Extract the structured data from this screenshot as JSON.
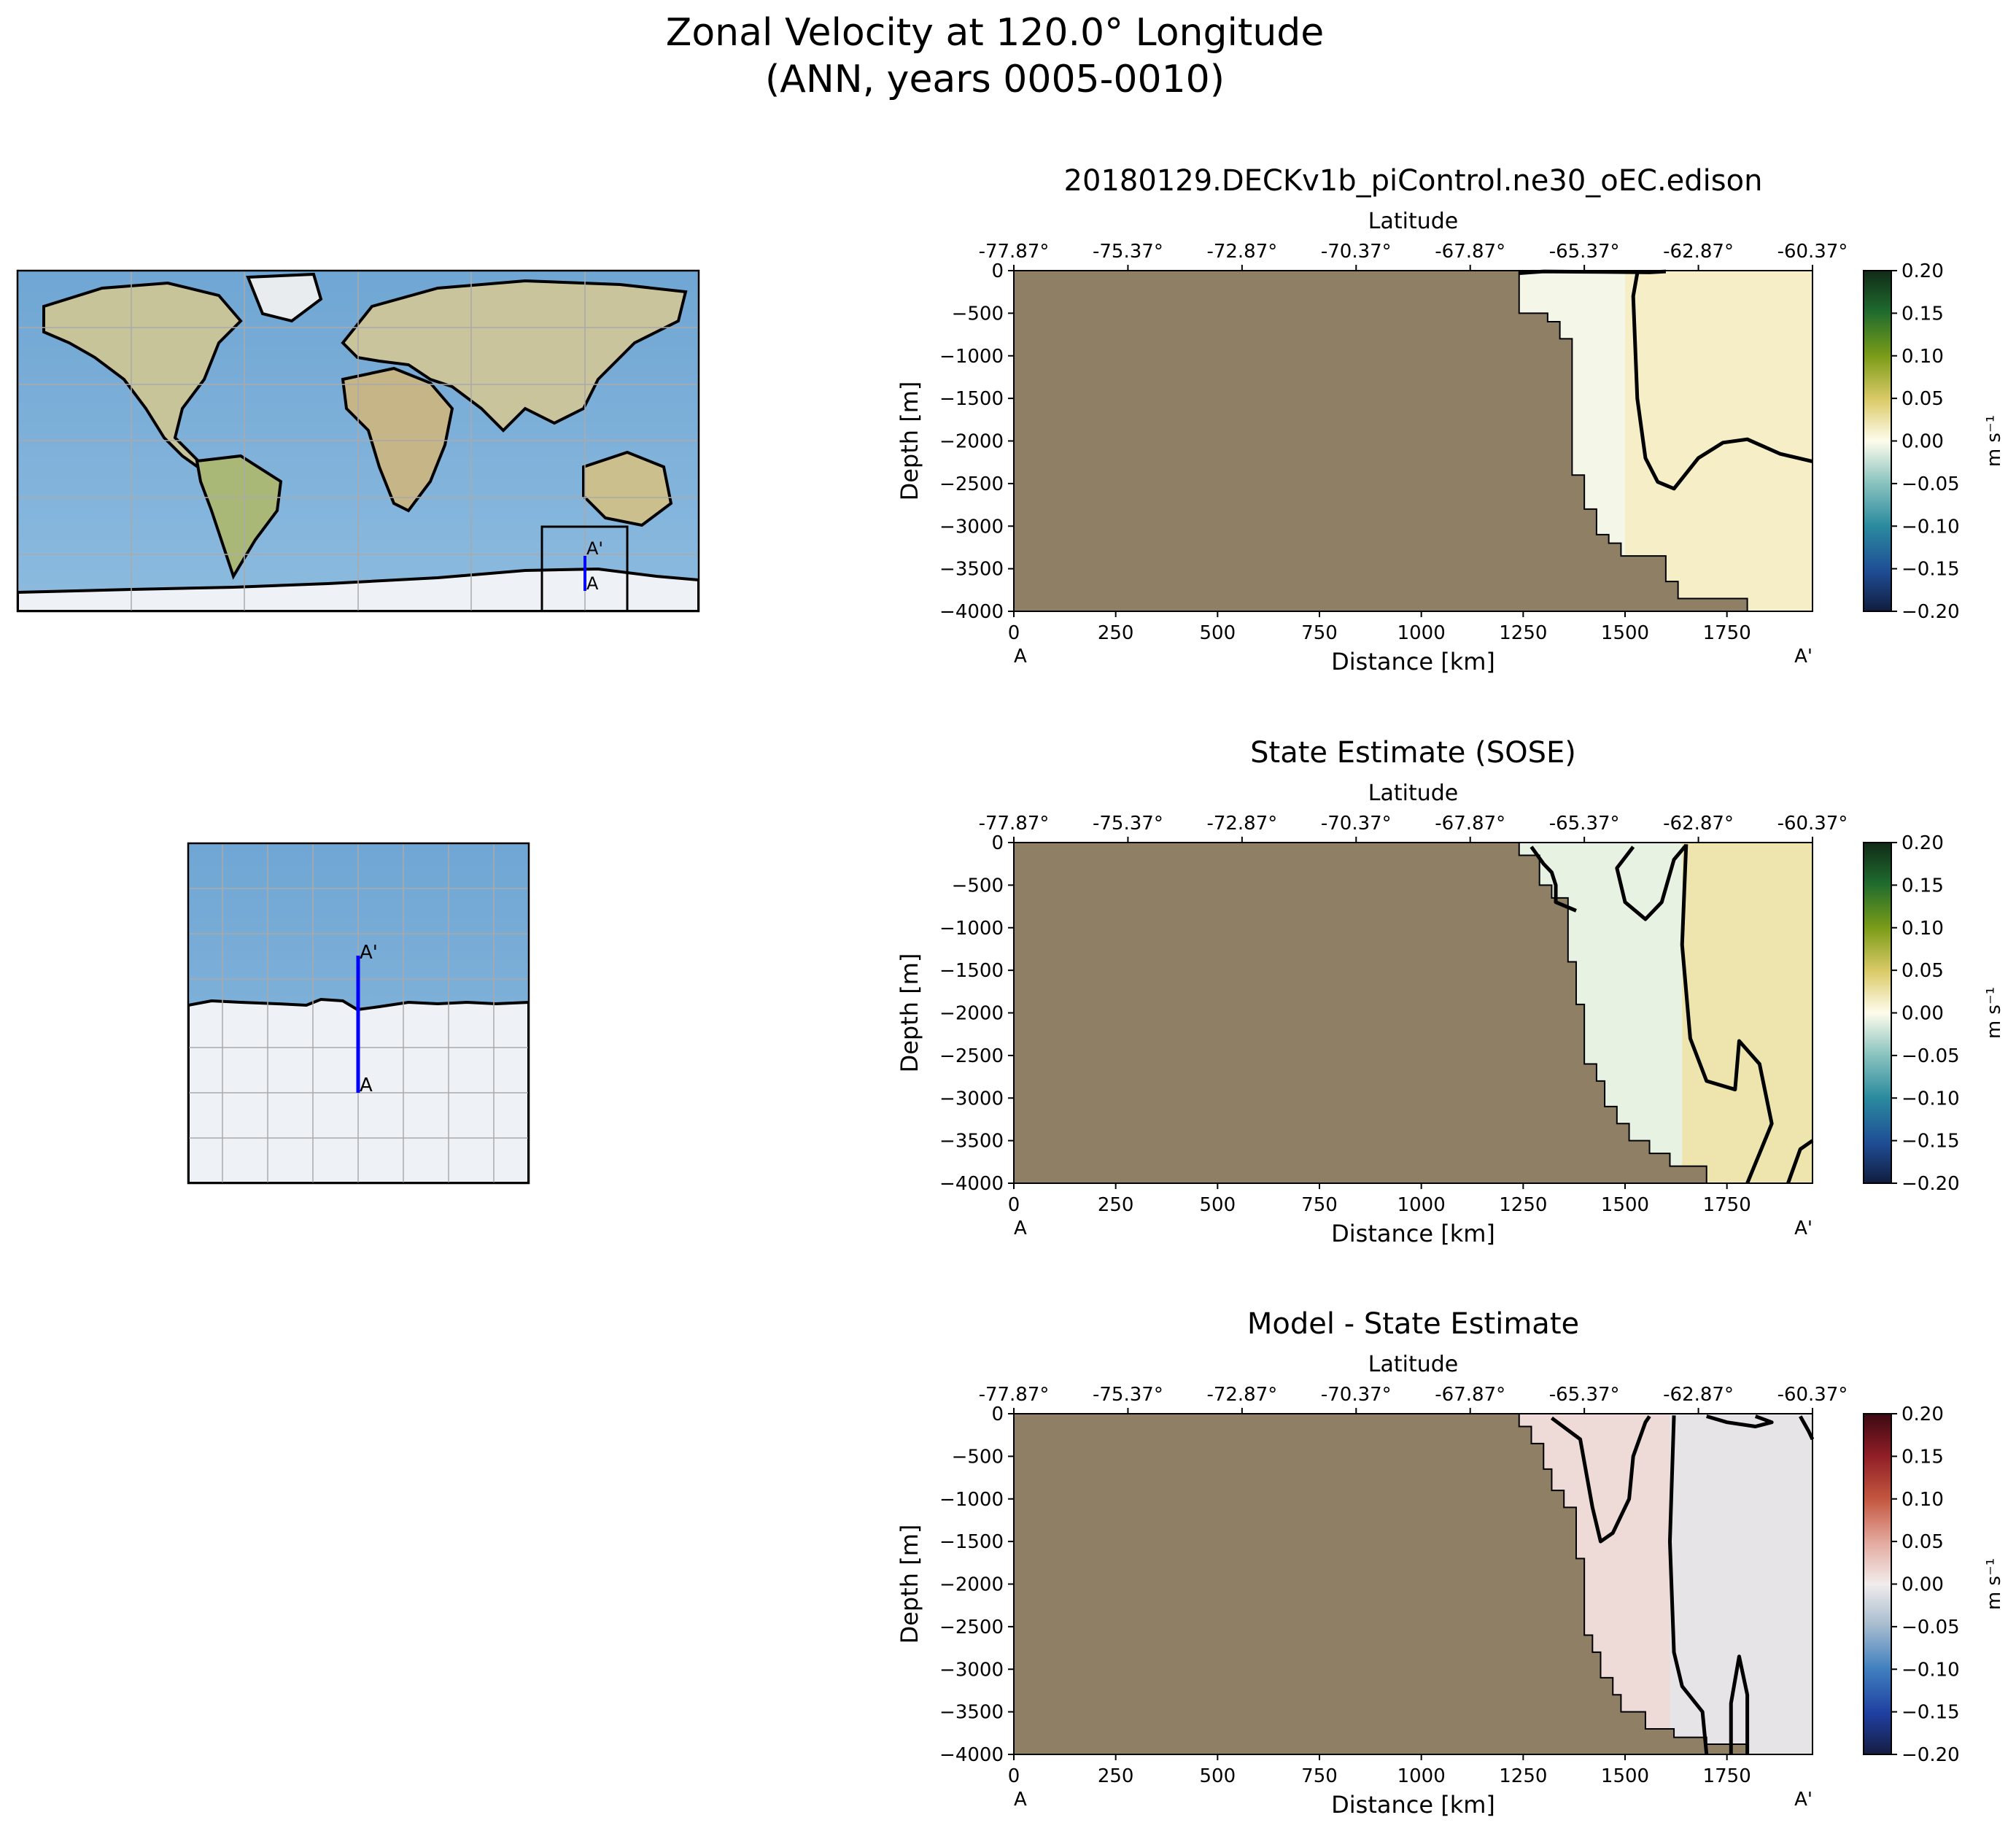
{
  "figure": {
    "title_line1": "Zonal Velocity at 120.0° Longitude",
    "title_line2": "(ANN, years 0005-0010)"
  },
  "maps": {
    "marker_start": "A",
    "marker_end": "A'",
    "colors": {
      "ocean": "#7cb0d6",
      "land": "#c8c8a0",
      "ice": "#eef2f8",
      "section_line": "#0000ff",
      "grid": "#aaaaaa"
    }
  },
  "chart_data": [
    {
      "type": "heatmap",
      "title": "20180129.DECKv1b_piControl.ne30_oEC.edison",
      "xlabel": "Distance [km]",
      "ylabel": "Depth [m]",
      "top_xlabel": "Latitude",
      "xlim": [
        0,
        1960
      ],
      "ylim": [
        -4000,
        0
      ],
      "xticks": [
        0,
        250,
        500,
        750,
        1000,
        1250,
        1500,
        1750
      ],
      "yticks": [
        0,
        -500,
        -1000,
        -1500,
        -2000,
        -2500,
        -3000,
        -3500,
        -4000
      ],
      "top_ticks": [
        {
          "x": 0,
          "label": "-77.87°"
        },
        {
          "x": 280,
          "label": "-75.37°"
        },
        {
          "x": 560,
          "label": "-72.87°"
        },
        {
          "x": 840,
          "label": "-70.37°"
        },
        {
          "x": 1120,
          "label": "-67.87°"
        },
        {
          "x": 1400,
          "label": "-65.37°"
        },
        {
          "x": 1680,
          "label": "-62.87°"
        },
        {
          "x": 1960,
          "label": "-60.37°"
        }
      ],
      "endpoint_labels": [
        "A",
        "A'"
      ],
      "colorbar": {
        "label": "m s⁻¹",
        "ticks": [
          "0.20",
          "0.15",
          "0.10",
          "0.05",
          "0.00",
          "-0.05",
          "-0.10",
          "-0.15",
          "-0.20"
        ],
        "range": [
          -0.2,
          0.2
        ],
        "colormap": "delta"
      },
      "bathymetry": [
        [
          1240,
          0
        ],
        [
          1240,
          -500
        ],
        [
          1310,
          -500
        ],
        [
          1310,
          -600
        ],
        [
          1340,
          -600
        ],
        [
          1340,
          -800
        ],
        [
          1370,
          -800
        ],
        [
          1370,
          -2400
        ],
        [
          1400,
          -2400
        ],
        [
          1400,
          -2800
        ],
        [
          1430,
          -2800
        ],
        [
          1430,
          -3100
        ],
        [
          1460,
          -3100
        ],
        [
          1460,
          -3200
        ],
        [
          1490,
          -3200
        ],
        [
          1490,
          -3350
        ],
        [
          1600,
          -3350
        ],
        [
          1600,
          -3650
        ],
        [
          1630,
          -3650
        ],
        [
          1630,
          -3850
        ],
        [
          1800,
          -3850
        ],
        [
          1800,
          -4000
        ]
      ],
      "contours": [
        [
          [
            1240,
            -30
          ],
          [
            1300,
            -10
          ],
          [
            1450,
            -15
          ],
          [
            1560,
            -20
          ],
          [
            1600,
            -10
          ]
        ],
        [
          [
            1530,
            -30
          ],
          [
            1520,
            -300
          ],
          [
            1530,
            -1500
          ],
          [
            1550,
            -2200
          ],
          [
            1580,
            -2480
          ],
          [
            1620,
            -2560
          ],
          [
            1680,
            -2200
          ],
          [
            1740,
            -2020
          ],
          [
            1800,
            -1980
          ],
          [
            1880,
            -2150
          ],
          [
            1960,
            -2240
          ]
        ]
      ],
      "field_bands": [
        {
          "x0": 1240,
          "x1": 1500,
          "value": -0.005
        },
        {
          "x0": 1500,
          "x1": 1960,
          "value": 0.015
        }
      ]
    },
    {
      "type": "heatmap",
      "title": "State Estimate (SOSE)",
      "xlabel": "Distance [km]",
      "ylabel": "Depth [m]",
      "top_xlabel": "Latitude",
      "xlim": [
        0,
        1960
      ],
      "ylim": [
        -4000,
        0
      ],
      "xticks": [
        0,
        250,
        500,
        750,
        1000,
        1250,
        1500,
        1750
      ],
      "yticks": [
        0,
        -500,
        -1000,
        -1500,
        -2000,
        -2500,
        -3000,
        -3500,
        -4000
      ],
      "top_ticks": [
        {
          "x": 0,
          "label": "-77.87°"
        },
        {
          "x": 280,
          "label": "-75.37°"
        },
        {
          "x": 560,
          "label": "-72.87°"
        },
        {
          "x": 840,
          "label": "-70.37°"
        },
        {
          "x": 1120,
          "label": "-67.87°"
        },
        {
          "x": 1400,
          "label": "-65.37°"
        },
        {
          "x": 1680,
          "label": "-62.87°"
        },
        {
          "x": 1960,
          "label": "-60.37°"
        }
      ],
      "endpoint_labels": [
        "A",
        "A'"
      ],
      "colorbar": {
        "label": "m s⁻¹",
        "ticks": [
          "0.20",
          "0.15",
          "0.10",
          "0.05",
          "0.00",
          "-0.05",
          "-0.10",
          "-0.15",
          "-0.20"
        ],
        "range": [
          -0.2,
          0.2
        ],
        "colormap": "delta"
      },
      "bathymetry": [
        [
          1240,
          0
        ],
        [
          1240,
          -150
        ],
        [
          1290,
          -150
        ],
        [
          1290,
          -500
        ],
        [
          1320,
          -500
        ],
        [
          1320,
          -650
        ],
        [
          1360,
          -650
        ],
        [
          1360,
          -1400
        ],
        [
          1380,
          -1400
        ],
        [
          1380,
          -1900
        ],
        [
          1400,
          -1900
        ],
        [
          1400,
          -2600
        ],
        [
          1430,
          -2600
        ],
        [
          1430,
          -2800
        ],
        [
          1450,
          -2800
        ],
        [
          1450,
          -3100
        ],
        [
          1480,
          -3100
        ],
        [
          1480,
          -3300
        ],
        [
          1510,
          -3300
        ],
        [
          1510,
          -3500
        ],
        [
          1560,
          -3500
        ],
        [
          1560,
          -3650
        ],
        [
          1610,
          -3650
        ],
        [
          1610,
          -3800
        ],
        [
          1700,
          -3800
        ],
        [
          1700,
          -4000
        ]
      ],
      "contours": [
        [
          [
            1270,
            -50
          ],
          [
            1300,
            -250
          ],
          [
            1320,
            -350
          ],
          [
            1330,
            -500
          ],
          [
            1330,
            -700
          ],
          [
            1380,
            -800
          ]
        ],
        [
          [
            1520,
            -50
          ],
          [
            1480,
            -300
          ],
          [
            1500,
            -700
          ],
          [
            1550,
            -900
          ],
          [
            1590,
            -700
          ],
          [
            1620,
            -200
          ],
          [
            1650,
            -30
          ]
        ],
        [
          [
            1650,
            -20
          ],
          [
            1640,
            -1200
          ],
          [
            1660,
            -2300
          ],
          [
            1700,
            -2800
          ],
          [
            1770,
            -2900
          ],
          [
            1780,
            -2330
          ],
          [
            1830,
            -2600
          ],
          [
            1860,
            -3300
          ],
          [
            1800,
            -4000
          ]
        ],
        [
          [
            1960,
            -3500
          ],
          [
            1930,
            -3600
          ],
          [
            1900,
            -4000
          ]
        ]
      ],
      "field_bands": [
        {
          "x0": 1240,
          "x1": 1640,
          "value": -0.01
        },
        {
          "x0": 1640,
          "x1": 1960,
          "value": 0.025
        }
      ]
    },
    {
      "type": "heatmap",
      "title": "Model - State Estimate",
      "xlabel": "Distance [km]",
      "ylabel": "Depth [m]",
      "top_xlabel": "Latitude",
      "xlim": [
        0,
        1960
      ],
      "ylim": [
        -4000,
        0
      ],
      "xticks": [
        0,
        250,
        500,
        750,
        1000,
        1250,
        1500,
        1750
      ],
      "yticks": [
        0,
        -500,
        -1000,
        -1500,
        -2000,
        -2500,
        -3000,
        -3500,
        -4000
      ],
      "top_ticks": [
        {
          "x": 0,
          "label": "-77.87°"
        },
        {
          "x": 280,
          "label": "-75.37°"
        },
        {
          "x": 560,
          "label": "-72.87°"
        },
        {
          "x": 840,
          "label": "-70.37°"
        },
        {
          "x": 1120,
          "label": "-67.87°"
        },
        {
          "x": 1400,
          "label": "-65.37°"
        },
        {
          "x": 1680,
          "label": "-62.87°"
        },
        {
          "x": 1960,
          "label": "-60.37°"
        }
      ],
      "endpoint_labels": [
        "A",
        "A'"
      ],
      "colorbar": {
        "label": "m s⁻¹",
        "ticks": [
          "0.20",
          "0.15",
          "0.10",
          "0.05",
          "0.00",
          "-0.05",
          "-0.10",
          "-0.15",
          "-0.20"
        ],
        "range": [
          -0.2,
          0.2
        ],
        "colormap": "balance"
      },
      "bathymetry": [
        [
          1240,
          0
        ],
        [
          1240,
          -150
        ],
        [
          1270,
          -150
        ],
        [
          1270,
          -350
        ],
        [
          1300,
          -350
        ],
        [
          1300,
          -650
        ],
        [
          1320,
          -650
        ],
        [
          1320,
          -900
        ],
        [
          1350,
          -900
        ],
        [
          1350,
          -1100
        ],
        [
          1380,
          -1100
        ],
        [
          1380,
          -1700
        ],
        [
          1400,
          -1700
        ],
        [
          1400,
          -2600
        ],
        [
          1420,
          -2600
        ],
        [
          1420,
          -2800
        ],
        [
          1440,
          -2800
        ],
        [
          1440,
          -3100
        ],
        [
          1470,
          -3100
        ],
        [
          1470,
          -3300
        ],
        [
          1490,
          -3300
        ],
        [
          1490,
          -3500
        ],
        [
          1550,
          -3500
        ],
        [
          1550,
          -3700
        ],
        [
          1620,
          -3700
        ],
        [
          1620,
          -3800
        ],
        [
          1700,
          -3800
        ],
        [
          1700,
          -3880
        ],
        [
          1800,
          -3880
        ],
        [
          1800,
          -4000
        ]
      ],
      "contours": [
        [
          [
            1320,
            -50
          ],
          [
            1390,
            -300
          ],
          [
            1420,
            -1100
          ],
          [
            1440,
            -1500
          ],
          [
            1470,
            -1400
          ],
          [
            1490,
            -1200
          ],
          [
            1510,
            -1000
          ],
          [
            1520,
            -500
          ],
          [
            1550,
            -100
          ],
          [
            1560,
            -30
          ]
        ],
        [
          [
            1620,
            -20
          ],
          [
            1610,
            -1500
          ],
          [
            1620,
            -2800
          ],
          [
            1640,
            -3200
          ],
          [
            1690,
            -3500
          ],
          [
            1700,
            -4000
          ]
        ],
        [
          [
            1700,
            -30
          ],
          [
            1750,
            -100
          ],
          [
            1820,
            -150
          ],
          [
            1860,
            -100
          ],
          [
            1820,
            -30
          ]
        ],
        [
          [
            1930,
            -30
          ],
          [
            1950,
            -200
          ],
          [
            1960,
            -300
          ]
        ],
        [
          [
            1760,
            -4000
          ],
          [
            1760,
            -3400
          ],
          [
            1780,
            -2850
          ],
          [
            1800,
            -3300
          ],
          [
            1800,
            -4000
          ]
        ]
      ],
      "field_bands": [
        {
          "x0": 1240,
          "x1": 1610,
          "value": 0.015
        },
        {
          "x0": 1610,
          "x1": 1960,
          "value": -0.008
        }
      ]
    }
  ]
}
